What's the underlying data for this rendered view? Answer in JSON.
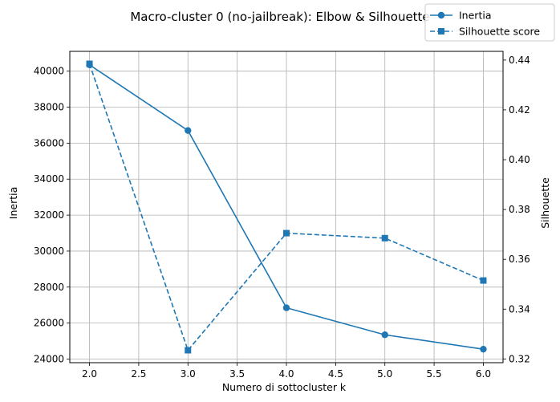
{
  "chart_data": {
    "type": "line",
    "title": "Macro-cluster 0 (no-jailbreak): Elbow & Silhouette",
    "xlabel": "Numero di sottocluster k",
    "ylabel_left": "Inertia",
    "ylabel_right": "Silhouette",
    "x": [
      2,
      3,
      4,
      5,
      6
    ],
    "xlim": [
      1.8,
      6.2
    ],
    "xticks": [
      "2.0",
      "2.5",
      "3.0",
      "3.5",
      "4.0",
      "4.5",
      "5.0",
      "5.5",
      "6.0"
    ],
    "ylim_left": [
      23800,
      41100
    ],
    "yticks_left": [
      "24000",
      "26000",
      "28000",
      "30000",
      "32000",
      "34000",
      "36000",
      "38000",
      "40000"
    ],
    "ylim_right": [
      0.3185,
      0.4435
    ],
    "yticks_right": [
      "0.32",
      "0.34",
      "0.36",
      "0.38",
      "0.40",
      "0.42",
      "0.44"
    ],
    "grid": true,
    "legend_position": "top-right",
    "series": [
      {
        "name": "Inertia",
        "axis": "left",
        "values": [
          40350,
          36700,
          26850,
          25350,
          24550
        ],
        "color": "#1f77b4",
        "linestyle": "solid",
        "marker": "circle"
      },
      {
        "name": "Silhouette score",
        "axis": "right",
        "values": [
          0.4385,
          0.3235,
          0.3705,
          0.3685,
          0.3515
        ],
        "color": "#1f77b4",
        "linestyle": "dashed",
        "marker": "square"
      }
    ]
  }
}
